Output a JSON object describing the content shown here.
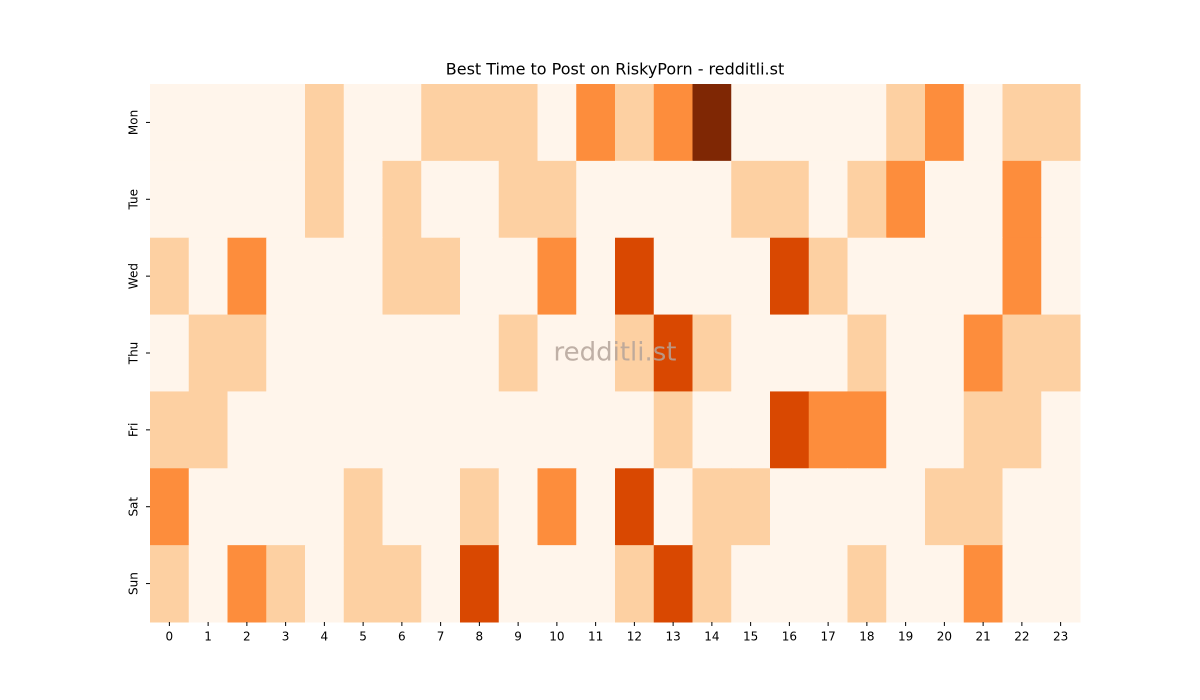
{
  "chart_data": {
    "type": "heatmap",
    "title": "Best Time to Post on RiskyPorn - redditli.st",
    "watermark": "redditli.st",
    "x_categories": [
      0,
      1,
      2,
      3,
      4,
      5,
      6,
      7,
      8,
      9,
      10,
      11,
      12,
      13,
      14,
      15,
      16,
      17,
      18,
      19,
      20,
      21,
      22,
      23
    ],
    "y_categories": [
      "Mon",
      "Tue",
      "Wed",
      "Thu",
      "Fri",
      "Sat",
      "Sun"
    ],
    "vmin": 0,
    "vmax": 4,
    "colors": [
      "#fff5eb",
      "#fdd0a2",
      "#fd8d3c",
      "#d94801",
      "#7f2704"
    ],
    "values": [
      [
        0,
        0,
        0,
        0,
        1,
        0,
        0,
        1,
        1,
        1,
        0,
        2,
        1,
        2,
        4,
        0,
        0,
        0,
        0,
        1,
        2,
        0,
        1,
        1
      ],
      [
        0,
        0,
        0,
        0,
        1,
        0,
        1,
        0,
        0,
        1,
        1,
        0,
        0,
        0,
        0,
        1,
        1,
        0,
        1,
        2,
        0,
        0,
        2,
        0
      ],
      [
        1,
        0,
        2,
        0,
        0,
        0,
        1,
        1,
        0,
        0,
        2,
        0,
        3,
        0,
        0,
        0,
        3,
        1,
        0,
        0,
        0,
        0,
        2,
        0
      ],
      [
        0,
        1,
        1,
        0,
        0,
        0,
        0,
        0,
        0,
        1,
        0,
        0,
        1,
        3,
        1,
        0,
        0,
        0,
        1,
        0,
        0,
        2,
        1,
        1
      ],
      [
        1,
        1,
        0,
        0,
        0,
        0,
        0,
        0,
        0,
        0,
        0,
        0,
        0,
        1,
        0,
        0,
        3,
        2,
        2,
        0,
        0,
        1,
        1,
        0
      ],
      [
        2,
        0,
        0,
        0,
        0,
        1,
        0,
        0,
        1,
        0,
        2,
        0,
        3,
        0,
        1,
        1,
        0,
        0,
        0,
        0,
        1,
        1,
        0,
        0
      ],
      [
        1,
        0,
        2,
        1,
        0,
        1,
        1,
        0,
        3,
        0,
        0,
        0,
        1,
        3,
        1,
        0,
        0,
        0,
        1,
        0,
        0,
        2,
        0,
        0
      ]
    ]
  }
}
